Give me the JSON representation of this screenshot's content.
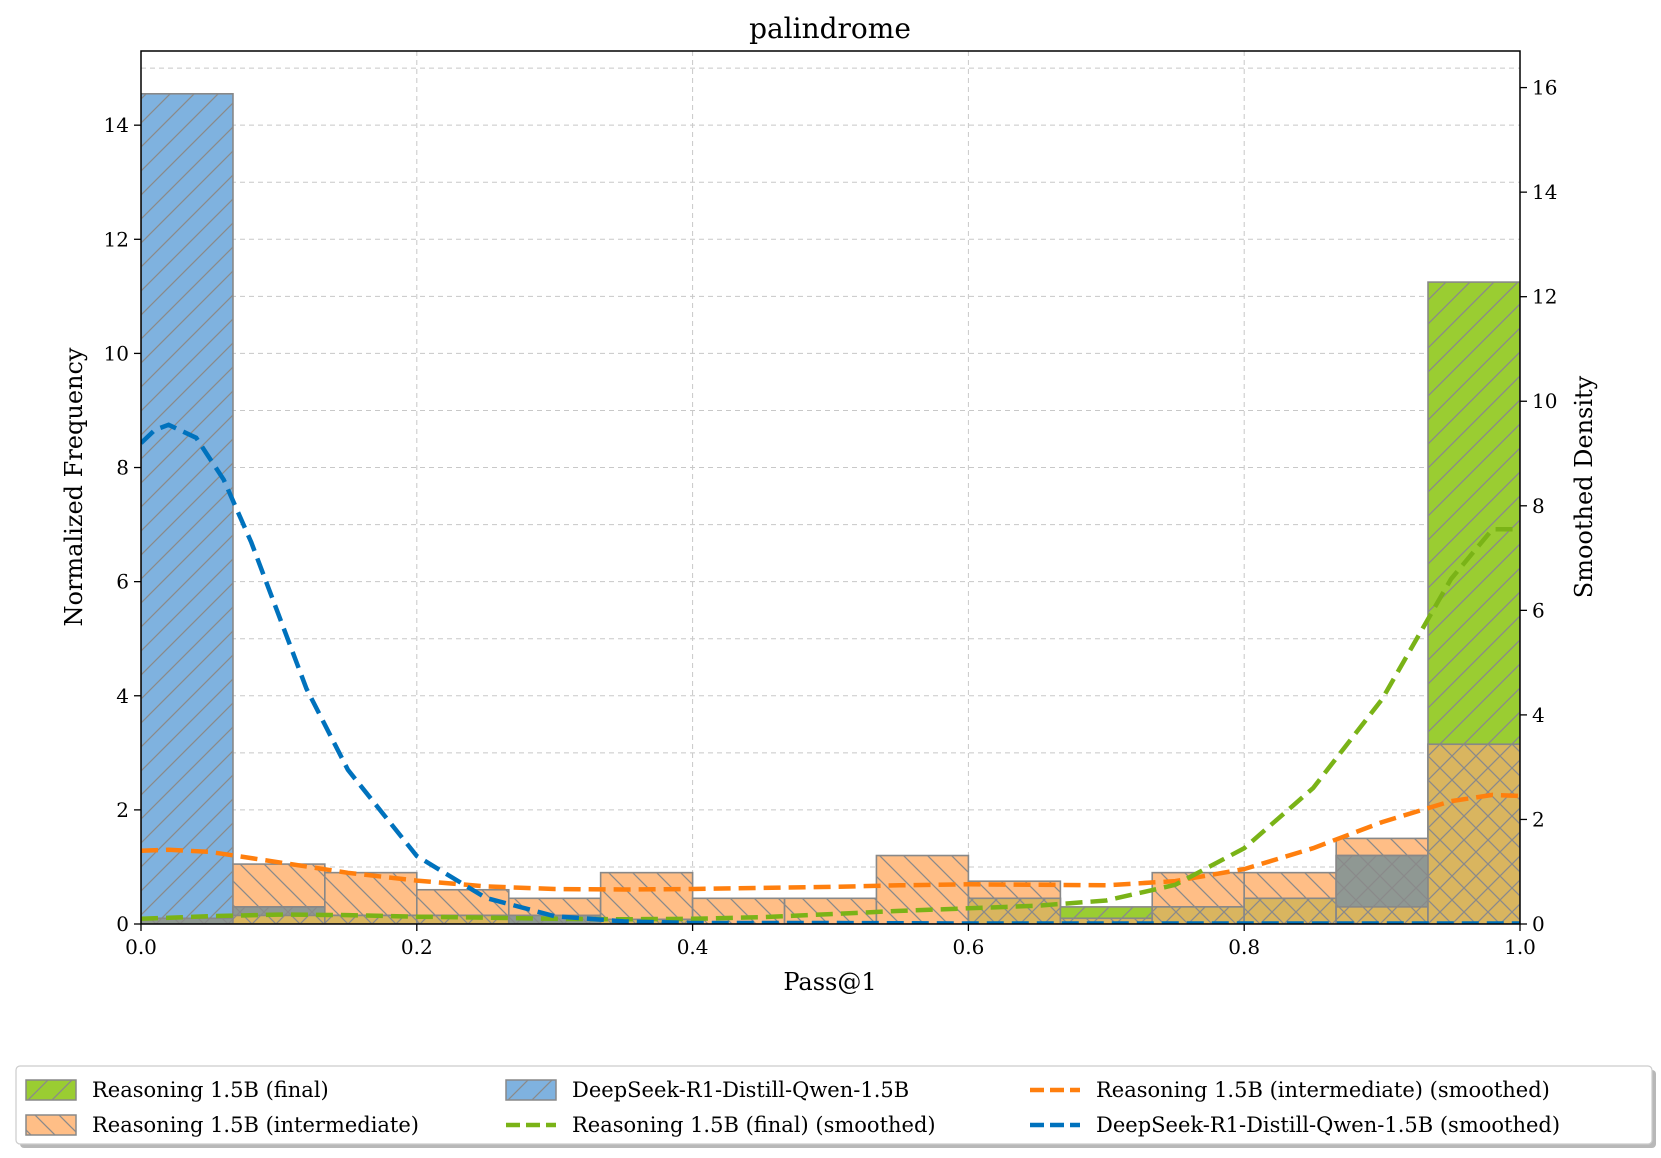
{
  "chart_data": {
    "type": "bar",
    "title": "palindrome",
    "xlabel": "Pass@1",
    "ylabel": "Normalized Frequency",
    "ylabel_right": "Smoothed Density",
    "xlim": [
      0,
      1
    ],
    "ylim": [
      0,
      15.3
    ],
    "ylim_right": [
      0,
      16.7
    ],
    "x_ticks": [
      "0.0",
      "0.2",
      "0.4",
      "0.6",
      "0.8",
      "1.0"
    ],
    "y_ticks": [
      "0",
      "2",
      "4",
      "6",
      "8",
      "10",
      "12",
      "14"
    ],
    "y_right_ticks": [
      "0",
      "2",
      "4",
      "6",
      "8",
      "10",
      "12",
      "14",
      "16"
    ],
    "grid": true,
    "legend_position": "bottom",
    "bin_edges": [
      0,
      0.0667,
      0.1333,
      0.2,
      0.2667,
      0.3333,
      0.4,
      0.4667,
      0.5333,
      0.6,
      0.6667,
      0.7333,
      0.8,
      0.8667,
      0.9333,
      1.0
    ],
    "histograms": [
      {
        "name": "Reasoning 1.5B (final)",
        "color": "#9acd32",
        "values": [
          0.0,
          0.15,
          0.15,
          0.15,
          0.0,
          0.08,
          0.0,
          0.0,
          0.0,
          0.45,
          0.3,
          0.3,
          0.45,
          0.3,
          11.25
        ]
      },
      {
        "name": "Reasoning 1.5B (intermediate)",
        "color": "#ffbe86",
        "values": [
          0.1,
          1.05,
          0.9,
          0.6,
          0.45,
          0.9,
          0.45,
          0.45,
          1.2,
          0.75,
          0.1,
          0.9,
          0.9,
          1.5,
          3.15
        ]
      },
      {
        "name": "DeepSeek-R1-Distill-Qwen-1.5B",
        "color": "#7fb2df",
        "values": [
          14.55,
          0.3,
          0.15,
          0.15,
          0.15,
          0.0,
          0.0,
          0.0,
          0.0,
          0.0,
          0.0,
          0.0,
          0.0,
          1.2,
          0.0
        ]
      }
    ],
    "overlaps": [
      {
        "between": [
          "Reasoning 1.5B (intermediate)",
          "DeepSeek-R1-Distill-Qwen-1.5B"
        ],
        "color": "#8f9893"
      },
      {
        "between": [
          "Reasoning 1.5B (intermediate)",
          "Reasoning 1.5B (final)"
        ],
        "color": "#d9b55f"
      }
    ],
    "density_series": [
      {
        "name": "Reasoning 1.5B (intermediate) (smoothed)",
        "color": "#ff7f0e",
        "axis": "right",
        "x": [
          0,
          0.02,
          0.05,
          0.1,
          0.15,
          0.2,
          0.25,
          0.3,
          0.35,
          0.4,
          0.45,
          0.5,
          0.55,
          0.6,
          0.65,
          0.7,
          0.75,
          0.8,
          0.85,
          0.9,
          0.95,
          0.98,
          1.0
        ],
        "y": [
          1.4,
          1.42,
          1.38,
          1.18,
          0.98,
          0.83,
          0.72,
          0.67,
          0.66,
          0.67,
          0.69,
          0.71,
          0.74,
          0.76,
          0.75,
          0.74,
          0.82,
          1.05,
          1.45,
          1.95,
          2.35,
          2.47,
          2.45
        ]
      },
      {
        "name": "Reasoning 1.5B (final) (smoothed)",
        "color": "#7ab317",
        "axis": "right",
        "x": [
          0,
          0.05,
          0.1,
          0.15,
          0.2,
          0.25,
          0.3,
          0.35,
          0.4,
          0.45,
          0.5,
          0.55,
          0.6,
          0.65,
          0.7,
          0.75,
          0.8,
          0.85,
          0.9,
          0.95,
          0.98,
          1.0
        ],
        "y": [
          0.1,
          0.15,
          0.18,
          0.17,
          0.14,
          0.12,
          0.1,
          0.09,
          0.1,
          0.13,
          0.19,
          0.25,
          0.3,
          0.35,
          0.45,
          0.75,
          1.45,
          2.6,
          4.3,
          6.6,
          7.55,
          7.55
        ]
      },
      {
        "name": "DeepSeek-R1-Distill-Qwen-1.5B (smoothed)",
        "color": "#0072bd",
        "axis": "right",
        "x": [
          0,
          0.01,
          0.02,
          0.04,
          0.06,
          0.08,
          0.1,
          0.12,
          0.15,
          0.2,
          0.25,
          0.3,
          0.35,
          0.4,
          0.5,
          0.6,
          0.7,
          0.8,
          0.9,
          1.0
        ],
        "y": [
          9.2,
          9.45,
          9.55,
          9.3,
          8.5,
          7.3,
          5.9,
          4.5,
          2.95,
          1.3,
          0.5,
          0.15,
          0.05,
          0.02,
          0.02,
          0.01,
          0.01,
          0.01,
          0.01,
          0.01
        ]
      }
    ],
    "legend": [
      {
        "label": "Reasoning 1.5B (final)",
        "kind": "patch",
        "color": "#9acd32",
        "hatch": "fwd"
      },
      {
        "label": "Reasoning 1.5B (intermediate)",
        "kind": "patch",
        "color": "#ffbe86",
        "hatch": "back"
      },
      {
        "label": "DeepSeek-R1-Distill-Qwen-1.5B",
        "kind": "patch",
        "color": "#7fb2df",
        "hatch": "fwd"
      },
      {
        "label": "Reasoning 1.5B (final) (smoothed)",
        "kind": "line",
        "color": "#7ab317"
      },
      {
        "label": "Reasoning 1.5B (intermediate) (smoothed)",
        "kind": "line",
        "color": "#ff7f0e"
      },
      {
        "label": "DeepSeek-R1-Distill-Qwen-1.5B (smoothed)",
        "kind": "line",
        "color": "#0072bd"
      }
    ]
  }
}
